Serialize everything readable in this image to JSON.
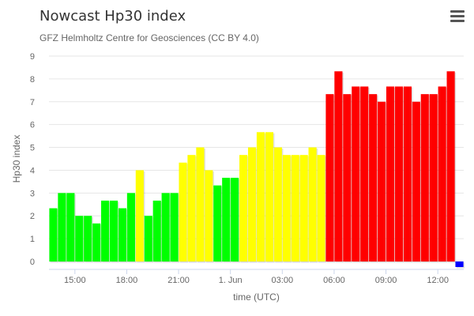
{
  "header": {
    "title": "Nowcast Hp30 index",
    "subtitle": "GFZ Helmholtz Centre for Geosciences (CC BY 4.0)"
  },
  "menu": {
    "icon": "hamburger-menu-icon"
  },
  "chart_data": {
    "type": "bar",
    "title": "Nowcast Hp30 index",
    "subtitle": "GFZ Helmholtz Centre for Geosciences (CC BY 4.0)",
    "xlabel": "time (UTC)",
    "ylabel": "Hp30 index",
    "ylim": [
      0,
      9
    ],
    "yticks": [
      "0",
      "1",
      "2",
      "3",
      "4",
      "5",
      "6",
      "7",
      "8",
      "9"
    ],
    "grid": true,
    "legend": "none",
    "x_start": "13:30",
    "x_step_hours": 0.5,
    "xticks": [
      {
        "label": "15:00",
        "hour": 15
      },
      {
        "label": "18:00",
        "hour": 18
      },
      {
        "label": "21:00",
        "hour": 21
      },
      {
        "label": "1. Jun",
        "hour": 24
      },
      {
        "label": "03:00",
        "hour": 27
      },
      {
        "label": "06:00",
        "hour": 30
      },
      {
        "label": "09:00",
        "hour": 33
      },
      {
        "label": "12:00",
        "hour": 36
      }
    ],
    "values": [
      2.333,
      3,
      3,
      2,
      2,
      1.667,
      2.667,
      2.667,
      2.333,
      3,
      4,
      2,
      2.667,
      3,
      3,
      4.333,
      4.667,
      5,
      4,
      3.333,
      3.667,
      3.667,
      4.667,
      5,
      5.667,
      5.667,
      5,
      4.667,
      4.667,
      4.667,
      5,
      4.667,
      7.333,
      8.333,
      7.333,
      7.667,
      7.667,
      7.333,
      7,
      7.667,
      7.667,
      7.667,
      7,
      7.333,
      7.333,
      7.667,
      8.333,
      0
    ],
    "colors": {
      "low": "#00ff00",
      "moderate": "#ffff00",
      "high": "#ff0000",
      "pending": "#0000ff"
    },
    "color_rule": "0-3.667 green, 4-5.667 yellow, 6+ red, last bar is the current nowcast in blue"
  }
}
